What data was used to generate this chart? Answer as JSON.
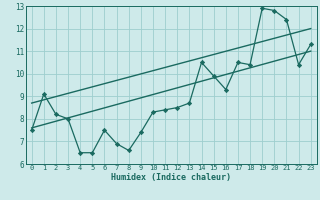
{
  "xlabel": "Humidex (Indice chaleur)",
  "ylabel": "",
  "xlim": [
    -0.5,
    23.5
  ],
  "ylim": [
    6,
    13
  ],
  "yticks": [
    6,
    7,
    8,
    9,
    10,
    11,
    12,
    13
  ],
  "xticks": [
    0,
    1,
    2,
    3,
    4,
    5,
    6,
    7,
    8,
    9,
    10,
    11,
    12,
    13,
    14,
    15,
    16,
    17,
    18,
    19,
    20,
    21,
    22,
    23
  ],
  "bg_color": "#ceeaea",
  "grid_color": "#9ecece",
  "line_color": "#1a6a60",
  "data_x": [
    0,
    1,
    2,
    3,
    4,
    5,
    6,
    7,
    8,
    9,
    10,
    11,
    12,
    13,
    14,
    15,
    16,
    17,
    18,
    19,
    20,
    21,
    22,
    23
  ],
  "data_y": [
    7.5,
    9.1,
    8.2,
    8.0,
    6.5,
    6.5,
    7.5,
    6.9,
    6.6,
    7.4,
    8.3,
    8.4,
    8.5,
    8.7,
    10.5,
    9.9,
    9.3,
    10.5,
    10.4,
    12.9,
    12.8,
    12.4,
    10.4,
    11.3
  ],
  "trend1_start": 7.6,
  "trend1_end": 11.0,
  "trend2_start": 8.7,
  "trend2_end": 12.0
}
